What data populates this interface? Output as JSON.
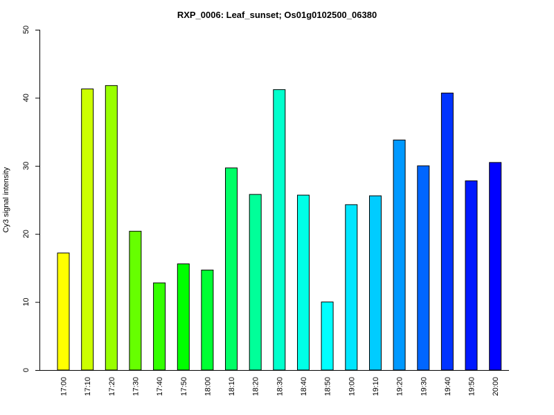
{
  "chart_data": {
    "type": "bar",
    "title": "RXP_0006: Leaf_sunset; Os01g0102500_06380",
    "xlabel": "",
    "ylabel": "Cy3 signal intensity",
    "ylim": [
      0,
      50
    ],
    "yticks": [
      0,
      10,
      20,
      30,
      40,
      50
    ],
    "grid": false,
    "categories": [
      "17:00",
      "17:10",
      "17:20",
      "17:30",
      "17:40",
      "17:50",
      "18:00",
      "18:10",
      "18:20",
      "18:30",
      "18:40",
      "18:50",
      "19:00",
      "19:10",
      "19:20",
      "19:30",
      "19:40",
      "19:50",
      "20:00"
    ],
    "values": [
      17.2,
      41.3,
      41.8,
      20.4,
      12.8,
      15.6,
      14.7,
      29.7,
      25.8,
      41.2,
      25.7,
      10.0,
      24.3,
      25.6,
      33.8,
      30.0,
      40.7,
      27.8,
      30.5
    ],
    "colors": [
      "#ffff00",
      "#ccff00",
      "#99ff00",
      "#66ff00",
      "#33ff00",
      "#00ff00",
      "#00ff33",
      "#00ff66",
      "#00ff99",
      "#00ffcc",
      "#00ffe6",
      "#00ffff",
      "#00e6ff",
      "#00ccff",
      "#0099ff",
      "#0066ff",
      "#0033ff",
      "#0019ff",
      "#0000ff"
    ]
  }
}
